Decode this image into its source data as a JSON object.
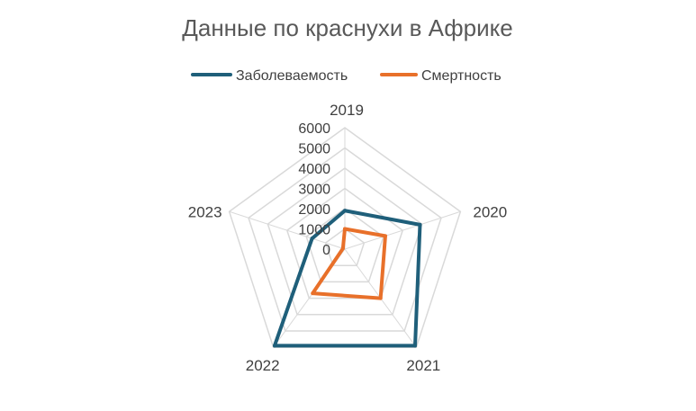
{
  "chart_data": {
    "type": "radar",
    "title": "Данные по краснухи в Африке",
    "categories": [
      "2019",
      "2020",
      "2021",
      "2022",
      "2023"
    ],
    "series": [
      {
        "name": "Заболеваемость",
        "color": "#1f5f7a",
        "values": [
          1900,
          3900,
          5900,
          5900,
          1700
        ]
      },
      {
        "name": "Смертность",
        "color": "#e8702a",
        "values": [
          1000,
          2100,
          3000,
          2700,
          100
        ]
      }
    ],
    "ylim": [
      0,
      6000
    ],
    "ticks": [
      "0",
      "1000",
      "2000",
      "3000",
      "4000",
      "5000",
      "6000"
    ],
    "grid": true,
    "legend": "top"
  }
}
